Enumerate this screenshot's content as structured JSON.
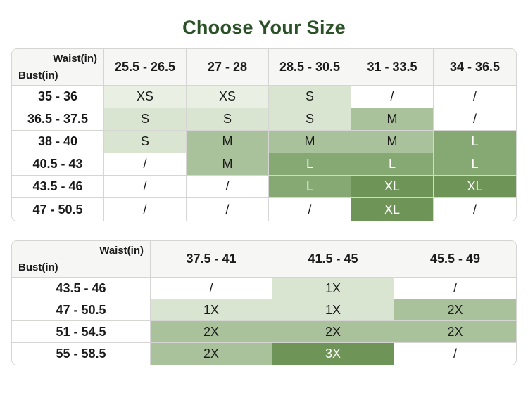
{
  "title": "Choose Your Size",
  "colors": {
    "title_green": "#2b5226",
    "header_bg": "#f6f6f4",
    "border": "#d5d5d3",
    "shade_xs": "#e9f0e3",
    "shade_s": "#dae5d1",
    "shade_m": "#a9c29b",
    "shade_l": "#86a973",
    "shade_xl": "#6f9458",
    "text_dark": "#1b1b1b",
    "text_light": "#ffffff"
  },
  "tables": [
    {
      "name": "regular-sizes",
      "corner": {
        "top": "Waist(in)",
        "bottom": "Bust(in)"
      },
      "columns": [
        "25.5 - 26.5",
        "27 - 28",
        "28.5 - 30.5",
        "31 - 33.5",
        "34 - 36.5"
      ],
      "rows": [
        {
          "label": "35 - 36",
          "cells": [
            {
              "text": "XS",
              "shade": "xs"
            },
            {
              "text": "XS",
              "shade": "xs"
            },
            {
              "text": "S",
              "shade": "s"
            },
            {
              "text": "/",
              "shade": "none"
            },
            {
              "text": "/",
              "shade": "none"
            }
          ]
        },
        {
          "label": "36.5 - 37.5",
          "cells": [
            {
              "text": "S",
              "shade": "s"
            },
            {
              "text": "S",
              "shade": "s"
            },
            {
              "text": "S",
              "shade": "s"
            },
            {
              "text": "M",
              "shade": "m"
            },
            {
              "text": "/",
              "shade": "none"
            }
          ]
        },
        {
          "label": "38 - 40",
          "cells": [
            {
              "text": "S",
              "shade": "s"
            },
            {
              "text": "M",
              "shade": "m"
            },
            {
              "text": "M",
              "shade": "m"
            },
            {
              "text": "M",
              "shade": "m"
            },
            {
              "text": "L",
              "shade": "l"
            }
          ]
        },
        {
          "label": "40.5 - 43",
          "cells": [
            {
              "text": "/",
              "shade": "none"
            },
            {
              "text": "M",
              "shade": "m"
            },
            {
              "text": "L",
              "shade": "l"
            },
            {
              "text": "L",
              "shade": "l"
            },
            {
              "text": "L",
              "shade": "l"
            }
          ]
        },
        {
          "label": "43.5 - 46",
          "cells": [
            {
              "text": "/",
              "shade": "none"
            },
            {
              "text": "/",
              "shade": "none"
            },
            {
              "text": "L",
              "shade": "l"
            },
            {
              "text": "XL",
              "shade": "xl"
            },
            {
              "text": "XL",
              "shade": "xl"
            }
          ]
        },
        {
          "label": "47 - 50.5",
          "cells": [
            {
              "text": "/",
              "shade": "none"
            },
            {
              "text": "/",
              "shade": "none"
            },
            {
              "text": "/",
              "shade": "none"
            },
            {
              "text": "XL",
              "shade": "xl"
            },
            {
              "text": "/",
              "shade": "none"
            }
          ]
        }
      ]
    },
    {
      "name": "plus-sizes",
      "corner": {
        "top": "Waist(in)",
        "bottom": "Bust(in)"
      },
      "columns": [
        "37.5 - 41",
        "41.5 - 45",
        "45.5 - 49"
      ],
      "rows": [
        {
          "label": "43.5 - 46",
          "cells": [
            {
              "text": "/",
              "shade": "none"
            },
            {
              "text": "1X",
              "shade": "s"
            },
            {
              "text": "/",
              "shade": "none"
            }
          ]
        },
        {
          "label": "47 - 50.5",
          "cells": [
            {
              "text": "1X",
              "shade": "s"
            },
            {
              "text": "1X",
              "shade": "s"
            },
            {
              "text": "2X",
              "shade": "m"
            }
          ]
        },
        {
          "label": "51 - 54.5",
          "cells": [
            {
              "text": "2X",
              "shade": "m"
            },
            {
              "text": "2X",
              "shade": "m"
            },
            {
              "text": "2X",
              "shade": "m"
            }
          ]
        },
        {
          "label": "55 - 58.5",
          "cells": [
            {
              "text": "2X",
              "shade": "m"
            },
            {
              "text": "3X",
              "shade": "xl"
            },
            {
              "text": "/",
              "shade": "none"
            }
          ]
        }
      ]
    }
  ]
}
